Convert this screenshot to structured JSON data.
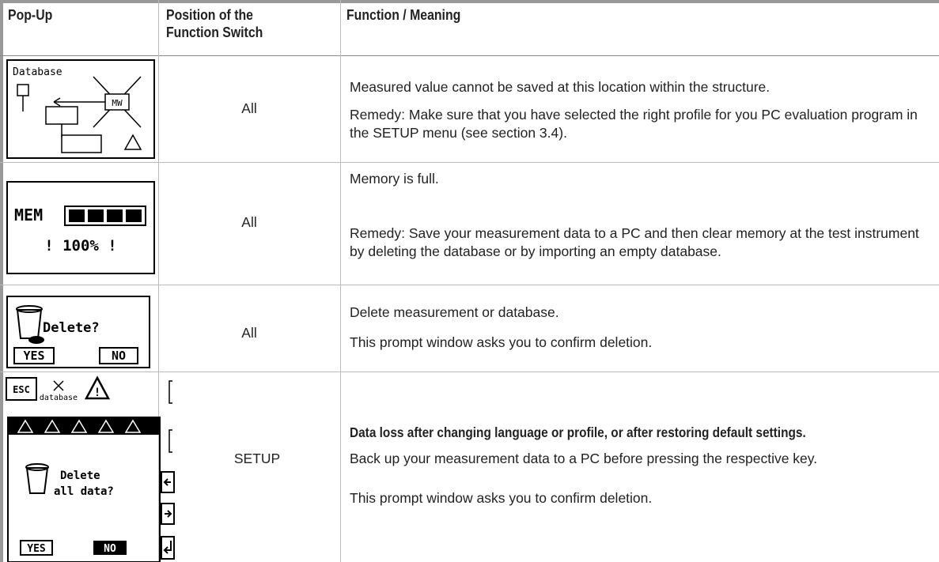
{
  "header": {
    "columns": [
      "Pop-Up",
      "Position of the Function Switch",
      "Function / Meaning"
    ]
  },
  "rows": [
    {
      "popup": {
        "labels": [
          "Database",
          "MW"
        ]
      },
      "position": "All",
      "meaning": [
        "Measured value cannot be saved at this location within the structure.",
        "Remedy: Make sure that you have selected the right profile for you PC evaluation program in the SETUP menu (see section 3.4)."
      ]
    },
    {
      "popup": {
        "labels": [
          "MEM",
          "! 100% !"
        ]
      },
      "position": "All",
      "meaning": [
        "Memory is full.",
        "Remedy: Save your measurement data to a PC and then clear memory at the test instrument by deleting the database or by importing an empty database."
      ]
    },
    {
      "popup": {
        "labels": [
          "Delete?",
          "YES",
          "NO"
        ]
      },
      "position": "All",
      "meaning": [
        "Delete measurement or database.",
        "This prompt window asks you to confirm deletion."
      ]
    },
    {
      "popup": {
        "labels": [
          "ESC",
          "database",
          "Delete",
          "all data?",
          "YES",
          "NO"
        ]
      },
      "position": "SETUP",
      "meaning": [
        "Data loss after changing language or profile, or after restoring default settings.",
        "Back up your measurement data to a PC before pressing the respective key.",
        "This prompt window asks you to confirm deletion."
      ]
    }
  ]
}
